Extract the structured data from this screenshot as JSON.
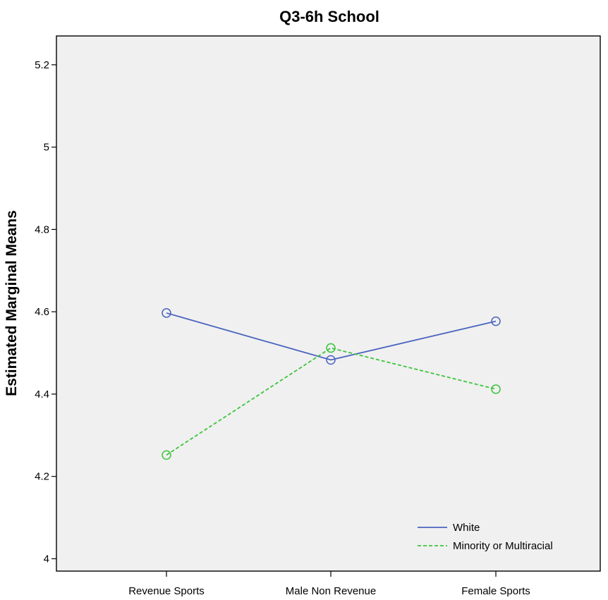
{
  "chart_data": {
    "type": "line",
    "title": "Q3-6h School",
    "ylabel": "Estimated Marginal Means",
    "xlabel": "",
    "categories": [
      "Revenue Sports",
      "Male Non Revenue",
      "Female Sports"
    ],
    "ylim": [
      3.97,
      5.27
    ],
    "yticks": [
      4,
      4.2,
      4.4,
      4.6,
      4.8,
      5,
      5.2
    ],
    "ytick_labels": [
      "4",
      "4.2",
      "4.4",
      "4.6",
      "4.8",
      "5",
      "5.2"
    ],
    "grid": false,
    "legend_position": "bottom-right",
    "series": [
      {
        "name": "White",
        "values": [
          4.597,
          4.483,
          4.577
        ],
        "color": "#4a64c0",
        "dash": "solid",
        "marker": "circle"
      },
      {
        "name": "Minority or Multiracial",
        "values": [
          4.252,
          4.512,
          4.412
        ],
        "color": "#3cc43c",
        "dash": "dashed",
        "marker": "circle"
      }
    ],
    "plot_background": "#f0f0f0"
  }
}
